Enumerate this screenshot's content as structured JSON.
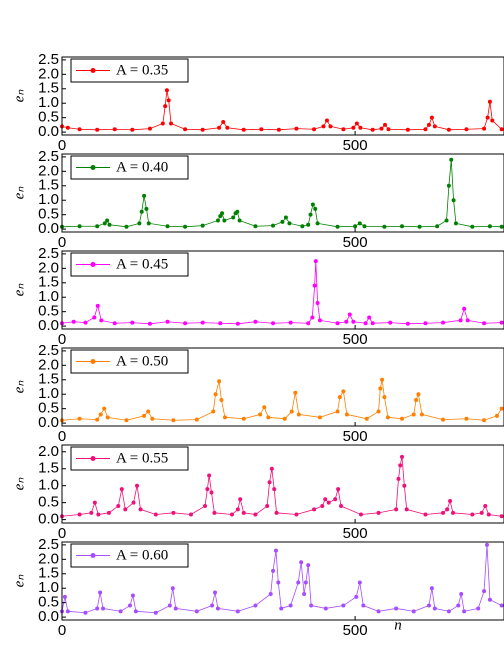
{
  "chart_data": [
    {
      "type": "line",
      "ylabel": "eₙ",
      "xlim": [
        0,
        754
      ],
      "xticks": [
        0,
        500
      ],
      "ylim": [
        -0.1,
        2.6
      ],
      "yticks": [
        {
          "value": 0,
          "label": "0.0"
        },
        0.5,
        {
          "value": 1,
          "label": "1.0"
        },
        1.5,
        {
          "value": 2,
          "label": "2.0"
        },
        2.5
      ],
      "x": [
        0,
        10,
        30,
        60,
        90,
        120,
        150,
        172,
        176,
        179,
        182,
        186,
        210,
        240,
        268,
        275,
        282,
        310,
        340,
        370,
        400,
        430,
        446,
        452,
        458,
        480,
        497,
        503,
        509,
        530,
        545,
        551,
        557,
        590,
        620,
        626,
        631,
        636,
        660,
        690,
        720,
        726,
        730,
        734,
        750
      ],
      "series": [
        {
          "name": "A = 0.35",
          "color": "#ff0000",
          "values": [
            0.2,
            0.15,
            0.1,
            0.08,
            0.1,
            0.08,
            0.12,
            0.3,
            0.9,
            1.45,
            1.1,
            0.3,
            0.1,
            0.08,
            0.15,
            0.35,
            0.15,
            0.08,
            0.1,
            0.08,
            0.12,
            0.1,
            0.2,
            0.4,
            0.2,
            0.1,
            0.15,
            0.3,
            0.15,
            0.08,
            0.12,
            0.25,
            0.1,
            0.08,
            0.1,
            0.25,
            0.5,
            0.2,
            0.08,
            0.1,
            0.12,
            0.5,
            1.05,
            0.4,
            0.1
          ]
        }
      ]
    },
    {
      "type": "line",
      "ylabel": "eₙ",
      "xlim": [
        0,
        754
      ],
      "xticks": [
        0,
        500
      ],
      "ylim": [
        -0.1,
        2.6
      ],
      "yticks": [
        {
          "value": 0,
          "label": "0.0"
        },
        0.5,
        {
          "value": 1,
          "label": "1.0"
        },
        1.5,
        {
          "value": 2,
          "label": "2.0"
        },
        2.5
      ],
      "x": [
        0,
        30,
        60,
        73,
        77,
        81,
        110,
        132,
        136,
        140,
        144,
        148,
        180,
        210,
        240,
        266,
        270,
        273,
        277,
        292,
        296,
        299,
        303,
        330,
        360,
        376,
        382,
        388,
        410,
        420,
        424,
        428,
        432,
        436,
        470,
        500,
        508,
        516,
        550,
        580,
        610,
        640,
        656,
        660,
        664,
        668,
        672,
        700,
        730,
        750
      ],
      "series": [
        {
          "name": "A = 0.40",
          "color": "#008000",
          "values": [
            0.08,
            0.1,
            0.1,
            0.2,
            0.3,
            0.15,
            0.08,
            0.2,
            0.6,
            1.15,
            0.7,
            0.2,
            0.1,
            0.08,
            0.12,
            0.3,
            0.45,
            0.55,
            0.3,
            0.4,
            0.55,
            0.6,
            0.3,
            0.1,
            0.12,
            0.25,
            0.4,
            0.2,
            0.1,
            0.15,
            0.5,
            0.85,
            0.7,
            0.2,
            0.08,
            0.1,
            0.2,
            0.1,
            0.08,
            0.1,
            0.08,
            0.1,
            0.3,
            1.5,
            2.4,
            1.0,
            0.2,
            0.08,
            0.1,
            0.08
          ]
        }
      ]
    },
    {
      "type": "line",
      "ylabel": "eₙ",
      "xlim": [
        0,
        754
      ],
      "xticks": [
        0,
        500
      ],
      "ylim": [
        -0.1,
        2.6
      ],
      "yticks": [
        {
          "value": 0,
          "label": "0.0"
        },
        0.5,
        {
          "value": 1,
          "label": "1.0"
        },
        1.5,
        {
          "value": 2,
          "label": "2.0"
        },
        2.5
      ],
      "x": [
        0,
        20,
        40,
        55,
        61,
        67,
        90,
        120,
        150,
        180,
        210,
        240,
        270,
        300,
        330,
        360,
        390,
        420,
        427,
        431,
        433,
        436,
        440,
        470,
        485,
        491,
        497,
        518,
        524,
        530,
        560,
        590,
        620,
        650,
        680,
        686,
        692,
        720,
        750
      ],
      "series": [
        {
          "name": "A = 0.45",
          "color": "#ff00ff",
          "values": [
            0.1,
            0.15,
            0.12,
            0.3,
            0.7,
            0.2,
            0.1,
            0.12,
            0.08,
            0.15,
            0.1,
            0.12,
            0.1,
            0.08,
            0.15,
            0.1,
            0.12,
            0.1,
            0.3,
            1.4,
            2.25,
            0.8,
            0.2,
            0.1,
            0.15,
            0.4,
            0.15,
            0.1,
            0.3,
            0.1,
            0.12,
            0.08,
            0.1,
            0.12,
            0.2,
            0.6,
            0.2,
            0.1,
            0.12
          ]
        }
      ]
    },
    {
      "type": "line",
      "ylabel": "eₙ",
      "xlim": [
        0,
        754
      ],
      "xticks": [
        0,
        500
      ],
      "ylim": [
        -0.1,
        2.6
      ],
      "yticks": [
        {
          "value": 0,
          "label": "0.0"
        },
        0.5,
        {
          "value": 1,
          "label": "1.0"
        },
        1.5,
        {
          "value": 2,
          "label": "2.0"
        },
        2.5
      ],
      "x": [
        0,
        30,
        60,
        66,
        72,
        78,
        110,
        140,
        147,
        154,
        190,
        230,
        258,
        262,
        268,
        272,
        278,
        310,
        338,
        345,
        352,
        380,
        392,
        398,
        404,
        440,
        470,
        474,
        480,
        486,
        520,
        540,
        543,
        546,
        550,
        556,
        580,
        600,
        604,
        608,
        614,
        650,
        690,
        720,
        742,
        750
      ],
      "series": [
        {
          "name": "A = 0.50",
          "color": "#ff8000",
          "values": [
            0.1,
            0.15,
            0.12,
            0.3,
            0.5,
            0.2,
            0.1,
            0.25,
            0.4,
            0.15,
            0.1,
            0.12,
            0.4,
            1.0,
            1.45,
            0.8,
            0.2,
            0.15,
            0.3,
            0.55,
            0.2,
            0.15,
            0.4,
            1.05,
            0.3,
            0.2,
            0.4,
            0.9,
            1.1,
            0.3,
            0.15,
            0.4,
            1.2,
            1.5,
            0.9,
            0.2,
            0.15,
            0.3,
            0.8,
            1.0,
            0.3,
            0.12,
            0.15,
            0.1,
            0.25,
            0.5
          ]
        }
      ]
    },
    {
      "type": "line",
      "ylabel": "eₙ",
      "xlim": [
        0,
        754
      ],
      "xticks": [
        0,
        500
      ],
      "ylim": [
        -0.1,
        2.2
      ],
      "yticks": [
        {
          "value": 0,
          "label": "0.0"
        },
        0.5,
        {
          "value": 1,
          "label": "1.0"
        },
        1.5,
        {
          "value": 2,
          "label": "2.0"
        }
      ],
      "x": [
        0,
        30,
        50,
        56,
        62,
        80,
        96,
        102,
        108,
        122,
        128,
        134,
        160,
        190,
        220,
        244,
        248,
        251,
        255,
        260,
        290,
        300,
        304,
        310,
        330,
        350,
        354,
        358,
        362,
        366,
        400,
        430,
        444,
        449,
        455,
        466,
        471,
        476,
        510,
        540,
        570,
        574,
        577,
        580,
        584,
        588,
        620,
        650,
        657,
        662,
        667,
        700,
        716,
        722,
        728,
        750
      ],
      "series": [
        {
          "name": "A = 0.55",
          "color": "#f0107a",
          "values": [
            0.1,
            0.15,
            0.2,
            0.5,
            0.15,
            0.2,
            0.4,
            0.9,
            0.3,
            0.5,
            1.0,
            0.3,
            0.15,
            0.2,
            0.15,
            0.4,
            0.9,
            1.3,
            0.8,
            0.2,
            0.15,
            0.3,
            0.6,
            0.2,
            0.15,
            0.4,
            1.1,
            1.5,
            0.9,
            0.2,
            0.15,
            0.3,
            0.4,
            0.6,
            0.5,
            0.6,
            0.9,
            0.4,
            0.15,
            0.2,
            0.3,
            1.2,
            1.6,
            1.85,
            1.0,
            0.3,
            0.15,
            0.2,
            0.3,
            0.55,
            0.2,
            0.15,
            0.2,
            0.4,
            0.15,
            0.1
          ]
        }
      ]
    },
    {
      "type": "line",
      "ylabel": "eₙ",
      "xlabel": "n",
      "xlim": [
        0,
        754
      ],
      "xticks": [
        0,
        500
      ],
      "ylim": [
        -0.1,
        2.6
      ],
      "yticks": [
        {
          "value": 0,
          "label": "0.0"
        },
        0.5,
        {
          "value": 1,
          "label": "1.0"
        },
        1.5,
        {
          "value": 2,
          "label": "2.0"
        },
        2.5
      ],
      "x": [
        0,
        5,
        10,
        40,
        60,
        65,
        70,
        100,
        116,
        121,
        126,
        160,
        184,
        189,
        194,
        230,
        256,
        261,
        266,
        300,
        330,
        356,
        360,
        365,
        369,
        374,
        390,
        403,
        408,
        413,
        416,
        420,
        425,
        450,
        480,
        502,
        508,
        514,
        540,
        570,
        600,
        626,
        631,
        636,
        660,
        676,
        681,
        686,
        710,
        720,
        725,
        730,
        750
      ],
      "series": [
        {
          "name": "A = 0.60",
          "color": "#a64dff",
          "values": [
            0.2,
            0.7,
            0.2,
            0.15,
            0.3,
            0.85,
            0.3,
            0.2,
            0.4,
            0.75,
            0.2,
            0.15,
            0.4,
            1.0,
            0.3,
            0.2,
            0.4,
            0.85,
            0.3,
            0.2,
            0.4,
            0.8,
            1.6,
            2.3,
            1.2,
            0.3,
            0.4,
            1.2,
            1.9,
            0.8,
            1.2,
            1.8,
            0.4,
            0.3,
            0.4,
            0.7,
            1.2,
            0.4,
            0.2,
            0.3,
            0.2,
            0.4,
            1.0,
            0.3,
            0.2,
            0.4,
            0.8,
            0.2,
            0.3,
            0.9,
            2.5,
            0.6,
            0.4
          ]
        }
      ]
    }
  ]
}
